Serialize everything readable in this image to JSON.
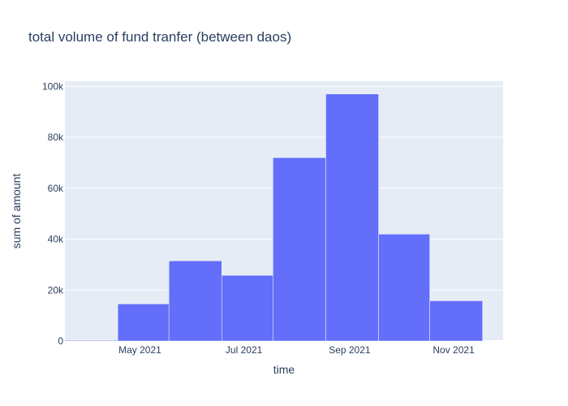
{
  "colors": {
    "plot_background": "#e5ecf6",
    "bar": "#636efa",
    "bar_outline": "#ffffff",
    "text": "#2a3f5f",
    "grid": "#ffffff"
  },
  "chart_data": {
    "type": "bar",
    "title": "total volume of fund tranfer (between daos)",
    "xlabel": "time",
    "ylabel": "sum of amount",
    "x_type": "date",
    "xlim": [
      "2021-03-18",
      "2021-11-30"
    ],
    "ylim": [
      0,
      102000
    ],
    "x_ticks": [
      {
        "date": "2021-05-01",
        "label": "May 2021"
      },
      {
        "date": "2021-07-01",
        "label": "Jul 2021"
      },
      {
        "date": "2021-09-01",
        "label": "Sep 2021"
      },
      {
        "date": "2021-11-01",
        "label": "Nov 2021"
      }
    ],
    "y_ticks": [
      {
        "value": 0,
        "label": "0"
      },
      {
        "value": 20000,
        "label": "20k"
      },
      {
        "value": 40000,
        "label": "40k"
      },
      {
        "value": 60000,
        "label": "60k"
      },
      {
        "value": 80000,
        "label": "80k"
      },
      {
        "value": 100000,
        "label": "100k"
      }
    ],
    "grid": true,
    "bins": [
      {
        "start": "2021-03-18",
        "end": "2021-04-18",
        "value": 300
      },
      {
        "start": "2021-04-18",
        "end": "2021-05-18",
        "value": 14600
      },
      {
        "start": "2021-05-18",
        "end": "2021-06-18",
        "value": 31500
      },
      {
        "start": "2021-06-18",
        "end": "2021-07-18",
        "value": 25800
      },
      {
        "start": "2021-07-18",
        "end": "2021-08-18",
        "value": 72000
      },
      {
        "start": "2021-08-18",
        "end": "2021-09-18",
        "value": 97000
      },
      {
        "start": "2021-09-18",
        "end": "2021-10-18",
        "value": 42000
      },
      {
        "start": "2021-10-18",
        "end": "2021-11-18",
        "value": 15800
      }
    ]
  }
}
